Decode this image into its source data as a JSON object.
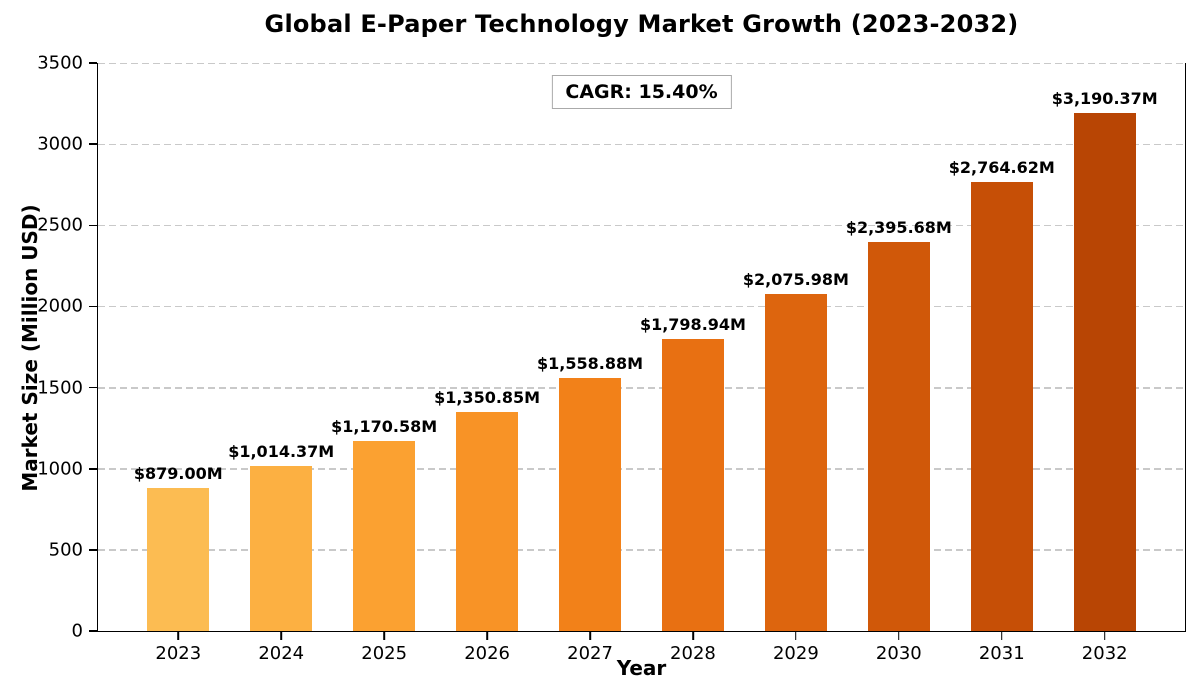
{
  "chart_data": {
    "type": "bar",
    "title": "Global E-Paper Technology Market Growth (2023-2032)",
    "xlabel": "Year",
    "ylabel": "Market Size (Million USD)",
    "annotation": "CAGR: 15.40%",
    "categories": [
      "2023",
      "2024",
      "2025",
      "2026",
      "2027",
      "2028",
      "2029",
      "2030",
      "2031",
      "2032"
    ],
    "values": [
      879.0,
      1014.37,
      1170.58,
      1350.85,
      1558.88,
      1798.94,
      2075.98,
      2395.68,
      2764.62,
      3190.37
    ],
    "bar_labels": [
      "$879.00M",
      "$1,014.37M",
      "$1,170.58M",
      "$1,350.85M",
      "$1,558.88M",
      "$1,798.94M",
      "$2,075.98M",
      "$2,395.68M",
      "$2,764.62M",
      "$3,190.37M"
    ],
    "bar_colors": [
      "#fcbc52",
      "#fcb042",
      "#fba131",
      "#f89326",
      "#f28119",
      "#e87012",
      "#dd650e",
      "#d05809",
      "#c64f06",
      "#b84504"
    ],
    "ylim": [
      0,
      3500
    ],
    "yticks": [
      0,
      500,
      1000,
      1500,
      2000,
      2500,
      3000,
      3500
    ],
    "grid": {
      "axis": "y",
      "style": "dashed",
      "color": "#c9c9c9"
    },
    "legend": "none",
    "colors": {
      "text": "#000000",
      "spine": "#000000",
      "annotation_border": "#aaaaaa"
    }
  }
}
